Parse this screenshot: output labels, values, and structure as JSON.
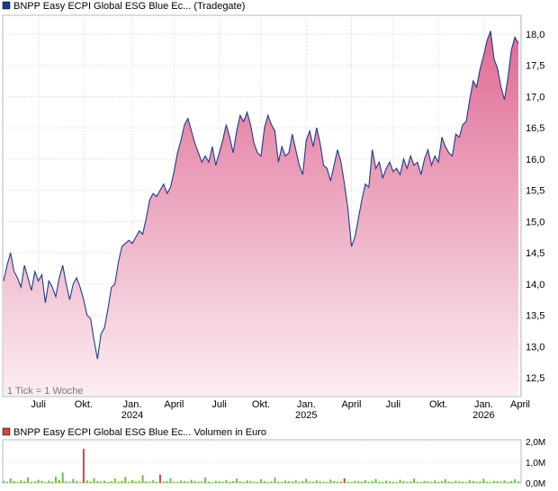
{
  "price_panel": {
    "legend_label": "BNPP Easy ECPI Global ESG Blue Ec... (Tradegate)",
    "legend_color": "#1c3c8c",
    "tick_note": "1 Tick = 1 Woche"
  },
  "volume_panel": {
    "legend_label": "BNPP Easy ECPI Global ESG Blue Ec... Volumen in Euro",
    "legend_color": "#c84848"
  },
  "chart_data": [
    {
      "type": "area",
      "title": "",
      "xlabel": "",
      "ylabel": "",
      "line_color": "#1c3c8c",
      "fill_top_color": "#e06a94",
      "fill_bottom_color": "#fbeef3",
      "grid": true,
      "ylim": [
        12.2,
        18.3
      ],
      "yticks": [
        "12,5",
        "13,0",
        "13,5",
        "14,0",
        "14,5",
        "15,0",
        "15,5",
        "16,0",
        "16,5",
        "17,0",
        "17,5",
        "18,0"
      ],
      "ytick_values": [
        12.5,
        13.0,
        13.5,
        14.0,
        14.5,
        15.0,
        15.5,
        16.0,
        16.5,
        17.0,
        17.5,
        18.0
      ],
      "x_range": [
        0,
        148
      ],
      "xticks": [
        {
          "x": 10,
          "label": "Juli",
          "year": ""
        },
        {
          "x": 23,
          "label": "Okt.",
          "year": ""
        },
        {
          "x": 37,
          "label": "Jan.",
          "year": "2024"
        },
        {
          "x": 49,
          "label": "April",
          "year": ""
        },
        {
          "x": 62,
          "label": "Juli",
          "year": ""
        },
        {
          "x": 74,
          "label": "Okt.",
          "year": ""
        },
        {
          "x": 87,
          "label": "Jan.",
          "year": "2025"
        },
        {
          "x": 100,
          "label": "April",
          "year": ""
        },
        {
          "x": 112,
          "label": "Juli",
          "year": ""
        },
        {
          "x": 125,
          "label": "Okt.",
          "year": ""
        },
        {
          "x": 138,
          "label": "Jan.",
          "year": "2026"
        },
        {
          "x": 150,
          "label": "April",
          "year": ""
        }
      ],
      "x": [
        0,
        1,
        2,
        3,
        4,
        5,
        6,
        7,
        8,
        9,
        10,
        11,
        12,
        13,
        14,
        15,
        16,
        17,
        18,
        19,
        20,
        21,
        22,
        23,
        24,
        25,
        26,
        27,
        28,
        29,
        30,
        31,
        32,
        33,
        34,
        35,
        36,
        37,
        38,
        39,
        40,
        41,
        42,
        43,
        44,
        45,
        46,
        47,
        48,
        49,
        50,
        51,
        52,
        53,
        54,
        55,
        56,
        57,
        58,
        59,
        60,
        61,
        62,
        63,
        64,
        65,
        66,
        67,
        68,
        69,
        70,
        71,
        72,
        73,
        74,
        75,
        76,
        77,
        78,
        79,
        80,
        81,
        82,
        83,
        84,
        85,
        86,
        87,
        88,
        89,
        90,
        91,
        92,
        93,
        94,
        95,
        96,
        97,
        98,
        99,
        100,
        101,
        102,
        103,
        104,
        105,
        106,
        107,
        108,
        109,
        110,
        111,
        112,
        113,
        114,
        115,
        116,
        117,
        118,
        119,
        120,
        121,
        122,
        123,
        124,
        125,
        126,
        127,
        128,
        129,
        130,
        131,
        132,
        133,
        134,
        135,
        136,
        137,
        138,
        139,
        140,
        141,
        142,
        143,
        144,
        145,
        146,
        147,
        148
      ],
      "y": [
        14.05,
        14.3,
        14.5,
        14.2,
        14.1,
        13.95,
        14.3,
        14.1,
        13.9,
        14.2,
        14.05,
        14.15,
        13.7,
        14.05,
        13.95,
        13.8,
        14.1,
        14.3,
        14.0,
        13.75,
        14.0,
        14.1,
        13.95,
        13.75,
        13.5,
        13.45,
        13.1,
        12.8,
        13.2,
        13.3,
        13.6,
        13.95,
        14.0,
        14.35,
        14.6,
        14.65,
        14.7,
        14.65,
        14.75,
        14.85,
        14.8,
        15.05,
        15.35,
        15.45,
        15.4,
        15.5,
        15.6,
        15.45,
        15.55,
        15.8,
        16.1,
        16.3,
        16.55,
        16.65,
        16.45,
        16.25,
        16.1,
        15.95,
        16.05,
        15.95,
        16.2,
        15.9,
        16.1,
        16.3,
        16.55,
        16.35,
        16.1,
        16.45,
        16.7,
        16.6,
        16.75,
        16.55,
        16.25,
        16.1,
        16.05,
        16.5,
        16.7,
        16.55,
        16.45,
        15.95,
        16.2,
        16.05,
        16.1,
        16.4,
        16.15,
        15.9,
        15.75,
        16.3,
        16.45,
        16.2,
        16.5,
        16.25,
        15.9,
        15.85,
        15.65,
        15.9,
        16.15,
        15.95,
        15.6,
        15.2,
        14.6,
        14.75,
        15.05,
        15.35,
        15.6,
        15.55,
        16.15,
        15.85,
        15.95,
        15.7,
        15.85,
        15.95,
        15.8,
        15.85,
        15.75,
        16.0,
        15.85,
        16.05,
        15.9,
        15.95,
        15.75,
        16.0,
        16.15,
        15.9,
        16.05,
        15.95,
        16.35,
        16.2,
        16.1,
        16.05,
        16.4,
        16.35,
        16.55,
        16.6,
        16.95,
        17.25,
        17.15,
        17.45,
        17.65,
        17.9,
        18.05,
        17.6,
        17.45,
        17.15,
        16.95,
        17.3,
        17.75,
        17.95,
        17.85
      ]
    },
    {
      "type": "bar",
      "title": "",
      "xlabel": "",
      "ylabel": "",
      "ylim": [
        0,
        2000000
      ],
      "yticks": [
        "0,0M",
        "1,0M",
        "2,0M"
      ],
      "ytick_values": [
        0,
        1000000,
        2000000
      ],
      "bar_color": "#66c43c",
      "highlight_color": "#c84848",
      "x": [
        0,
        1,
        2,
        3,
        4,
        5,
        6,
        7,
        8,
        9,
        10,
        11,
        12,
        13,
        14,
        15,
        16,
        17,
        18,
        19,
        20,
        21,
        22,
        23,
        24,
        25,
        26,
        27,
        28,
        29,
        30,
        31,
        32,
        33,
        34,
        35,
        36,
        37,
        38,
        39,
        40,
        41,
        42,
        43,
        44,
        45,
        46,
        47,
        48,
        49,
        50,
        51,
        52,
        53,
        54,
        55,
        56,
        57,
        58,
        59,
        60,
        61,
        62,
        63,
        64,
        65,
        66,
        67,
        68,
        69,
        70,
        71,
        72,
        73,
        74,
        75,
        76,
        77,
        78,
        79,
        80,
        81,
        82,
        83,
        84,
        85,
        86,
        87,
        88,
        89,
        90,
        91,
        92,
        93,
        94,
        95,
        96,
        97,
        98,
        99,
        100,
        101,
        102,
        103,
        104,
        105,
        106,
        107,
        108,
        109,
        110,
        111,
        112,
        113,
        114,
        115,
        116,
        117,
        118,
        119,
        120,
        121,
        122,
        123,
        124,
        125,
        126,
        127,
        128,
        129,
        130,
        131,
        132,
        133,
        134,
        135,
        136,
        137,
        138,
        139,
        140,
        141,
        142,
        143,
        144,
        145,
        146,
        147,
        148
      ],
      "values": [
        100000,
        60000,
        220000,
        90000,
        40000,
        130000,
        80000,
        260000,
        50000,
        70000,
        150000,
        90000,
        40000,
        110000,
        60000,
        300000,
        140000,
        500000,
        80000,
        60000,
        190000,
        90000,
        40000,
        1650000,
        120000,
        70000,
        230000,
        90000,
        60000,
        110000,
        40000,
        80000,
        220000,
        60000,
        90000,
        300000,
        50000,
        140000,
        70000,
        100000,
        380000,
        80000,
        60000,
        130000,
        50000,
        400000,
        70000,
        90000,
        230000,
        60000,
        40000,
        110000,
        80000,
        60000,
        150000,
        90000,
        50000,
        70000,
        260000,
        60000,
        40000,
        100000,
        80000,
        60000,
        130000,
        50000,
        90000,
        210000,
        70000,
        50000,
        120000,
        80000,
        60000,
        40000,
        180000,
        90000,
        50000,
        70000,
        250000,
        60000,
        40000,
        110000,
        80000,
        60000,
        140000,
        50000,
        90000,
        200000,
        70000,
        50000,
        120000,
        80000,
        60000,
        40000,
        160000,
        90000,
        50000,
        70000,
        220000,
        60000,
        40000,
        100000,
        80000,
        60000,
        130000,
        50000,
        90000,
        190000,
        70000,
        50000,
        110000,
        80000,
        60000,
        40000,
        150000,
        90000,
        50000,
        70000,
        210000,
        60000,
        40000,
        100000,
        80000,
        60000,
        120000,
        50000,
        90000,
        180000,
        70000,
        50000,
        110000,
        80000,
        60000,
        40000,
        140000,
        90000,
        50000,
        70000,
        200000,
        60000,
        40000,
        100000,
        80000,
        60000,
        120000,
        50000,
        90000,
        170000,
        70000
      ],
      "highlight_indices": [
        23,
        45,
        98
      ]
    }
  ]
}
